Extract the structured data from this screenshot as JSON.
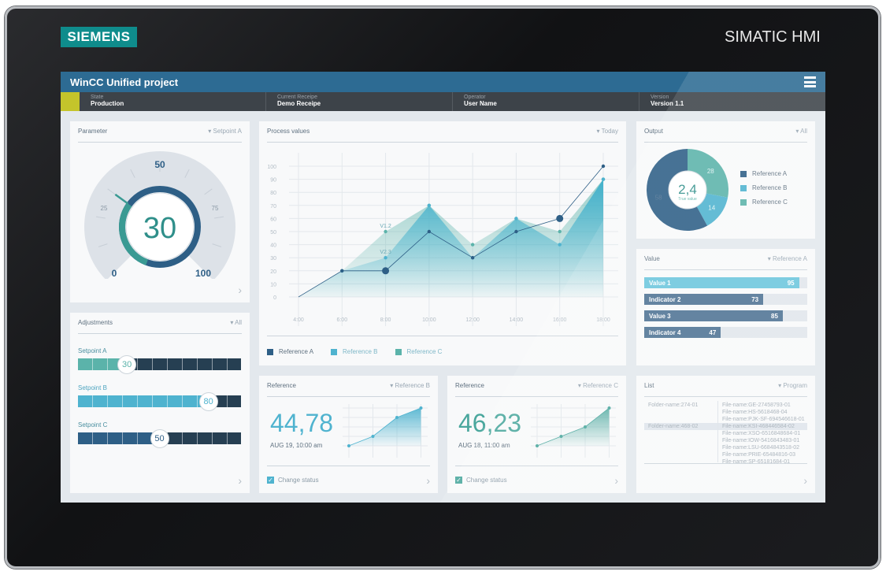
{
  "device": {
    "logo": "SIEMENS",
    "brand": "SIMATIC HMI"
  },
  "header": {
    "title": "WinCC Unified project",
    "menu_icon": "hamburger-icon"
  },
  "status": [
    {
      "label": "State",
      "value": "Production"
    },
    {
      "label": "Current Receipe",
      "value": "Demo Receipe"
    },
    {
      "label": "Operator",
      "value": "User Name"
    },
    {
      "label": "Version",
      "value": "Version 1.1"
    }
  ],
  "colors": {
    "title_bar": "#2d6b93",
    "status_bar": "#3d4349",
    "state": "#c4c42b",
    "ref_a": "#2e5f86",
    "ref_b": "#4fb3cf",
    "ref_c": "#5bb3aa"
  },
  "parameter": {
    "title": "Parameter",
    "selector": "Setpoint A",
    "value": "30",
    "value_num": 30,
    "ticks": [
      "0",
      "25",
      "50",
      "75",
      "100"
    ]
  },
  "adjustments": {
    "title": "Adjustments",
    "selector": "All",
    "sliders": [
      {
        "label": "Setpoint A",
        "value": "30",
        "percent": 30
      },
      {
        "label": "Setpoint B",
        "value": "80",
        "percent": 80
      },
      {
        "label": "Setpoint C",
        "value": "50",
        "percent": 50
      }
    ]
  },
  "process": {
    "title": "Process values",
    "selector": "Today"
  },
  "chart_data": {
    "type": "area",
    "x": [
      "4:00",
      "6:00",
      "8:00",
      "10:00",
      "12:00",
      "14:00",
      "16:00",
      "18:00"
    ],
    "yticks": [
      0,
      10,
      20,
      30,
      40,
      50,
      60,
      70,
      80,
      90,
      100
    ],
    "ylim": [
      0,
      100
    ],
    "grid": true,
    "legend_position": "bottom-left",
    "series": [
      {
        "name": "Reference A",
        "type": "line",
        "values": [
          0,
          20,
          20,
          50,
          30,
          50,
          60,
          100
        ]
      },
      {
        "name": "Reference B",
        "type": "area",
        "values": [
          0,
          20,
          30,
          70,
          30,
          60,
          40,
          90
        ]
      },
      {
        "name": "Reference C",
        "type": "area",
        "values": [
          0,
          20,
          50,
          70,
          40,
          60,
          50,
          90
        ]
      }
    ],
    "annotations": [
      {
        "text": "V1.2",
        "x": "8:00",
        "y": 50
      },
      {
        "text": "V2.3",
        "x": "8:00",
        "y": 30
      }
    ]
  },
  "refB": {
    "title": "Reference",
    "selector": "Reference B",
    "value": "44,78",
    "date": "AUG 19, 10:00 am",
    "checkbox": "Change status",
    "checked": true,
    "trend": [
      0,
      1,
      3,
      4
    ]
  },
  "refC": {
    "title": "Reference",
    "selector": "Reference C",
    "value": "46,23",
    "date": "AUG 18, 11:00 am",
    "checkbox": "Change status",
    "checked": true,
    "trend": [
      0,
      1,
      2,
      4
    ]
  },
  "output": {
    "title": "Output",
    "selector": "All",
    "center_value": "2,4",
    "center_label": "True value",
    "slices": [
      {
        "name": "Reference A",
        "value": 58,
        "label": "58"
      },
      {
        "name": "Reference B",
        "value": 14,
        "label": "14"
      },
      {
        "name": "Reference C",
        "value": 28,
        "label": "28"
      }
    ]
  },
  "value_panel": {
    "title": "Value",
    "selector": "Reference A",
    "bars": [
      {
        "label": "Value 1",
        "value": "95",
        "percent": 95
      },
      {
        "label": "Indicator 2",
        "value": "73",
        "percent": 73
      },
      {
        "label": "Value 3",
        "value": "85",
        "percent": 85
      },
      {
        "label": "Indicator 4",
        "value": "47",
        "percent": 47
      }
    ]
  },
  "list": {
    "title": "List",
    "selector": "Program",
    "folders": [
      "Folder-name:274-01",
      "Folder-name:468-02"
    ],
    "files": [
      "File-name:GE-27458793-01",
      "File-name:HS-5618468-04",
      "File-name:PJK-SF-694546618-01",
      "File-name:KSI-468446584-02",
      "File-name:XSO-6516848684-01",
      "File-name:IOW-5416843483-01",
      "File-name:LSU-6684843518-02",
      "File-name:PRIE-65484816-03",
      "File-name:SP-65181684-01"
    ],
    "selected_folder": 1,
    "selected_file": 3
  }
}
